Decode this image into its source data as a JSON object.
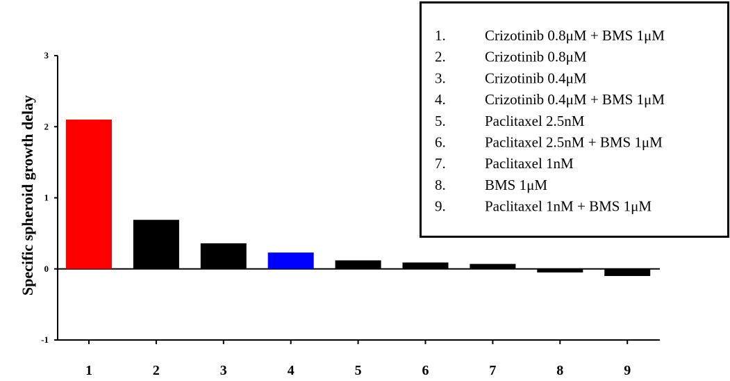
{
  "chart_data": {
    "type": "bar",
    "title": "",
    "xlabel": "",
    "ylabel": "Specific spheroid growth delay",
    "categories": [
      "1",
      "2",
      "3",
      "4",
      "5",
      "6",
      "7",
      "8",
      "9"
    ],
    "values": [
      2.1,
      0.69,
      0.36,
      0.23,
      0.12,
      0.09,
      0.07,
      -0.05,
      -0.1
    ],
    "bar_colors": [
      "#ff0000",
      "#000000",
      "#000000",
      "#0000ff",
      "#000000",
      "#000000",
      "#000000",
      "#000000",
      "#000000"
    ],
    "yticks": [
      "-1",
      "0",
      "1",
      "2",
      "3"
    ],
    "ylim": [
      -1,
      3
    ],
    "grid": false,
    "legend_position": "top-right",
    "legend": [
      {
        "number": "1.",
        "label": "Crizotinib 0.8μM + BMS 1μM"
      },
      {
        "number": "2.",
        "label": "Crizotinib 0.8μM"
      },
      {
        "number": "3.",
        "label": "Crizotinib 0.4μM"
      },
      {
        "number": "4.",
        "label": "Crizotinib 0.4μM + BMS 1μM"
      },
      {
        "number": "5.",
        "label": "Paclitaxel 2.5nM"
      },
      {
        "number": "6.",
        "label": "Paclitaxel 2.5nM + BMS 1μM"
      },
      {
        "number": "7.",
        "label": "Paclitaxel 1nM"
      },
      {
        "number": "8.",
        "label": "BMS 1μM"
      },
      {
        "number": "9.",
        "label": "Paclitaxel 1nM + BMS 1μM"
      }
    ]
  }
}
